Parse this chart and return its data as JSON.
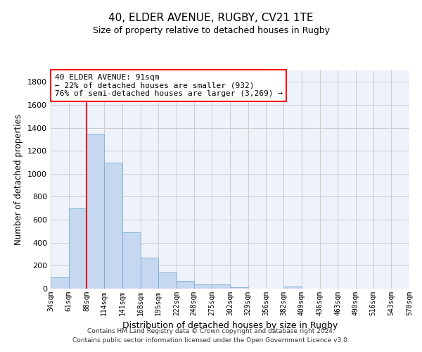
{
  "title1": "40, ELDER AVENUE, RUGBY, CV21 1TE",
  "title2": "Size of property relative to detached houses in Rugby",
  "xlabel": "Distribution of detached houses by size in Rugby",
  "ylabel": "Number of detached properties",
  "bar_color": "#c5d8f0",
  "bar_edge_color": "#7aadd4",
  "grid_color": "#cccccc",
  "background_color": "#eef2fb",
  "annotation_text": "40 ELDER AVENUE: 91sqm\n← 22% of detached houses are smaller (932)\n76% of semi-detached houses are larger (3,269) →",
  "vline_color": "red",
  "vline_x_index": 2,
  "footer_text": "Contains HM Land Registry data © Crown copyright and database right 2024.\nContains public sector information licensed under the Open Government Licence v3.0.",
  "bin_edges": [
    34,
    61,
    88,
    114,
    141,
    168,
    195,
    222,
    248,
    275,
    302,
    329,
    356,
    382,
    409,
    436,
    463,
    490,
    516,
    543,
    570
  ],
  "bar_heights": [
    100,
    700,
    1350,
    1100,
    490,
    270,
    140,
    70,
    35,
    35,
    15,
    0,
    0,
    20,
    0,
    0,
    0,
    0,
    0,
    0
  ],
  "ylim": [
    0,
    1900
  ],
  "yticks": [
    0,
    200,
    400,
    600,
    800,
    1000,
    1200,
    1400,
    1600,
    1800
  ]
}
